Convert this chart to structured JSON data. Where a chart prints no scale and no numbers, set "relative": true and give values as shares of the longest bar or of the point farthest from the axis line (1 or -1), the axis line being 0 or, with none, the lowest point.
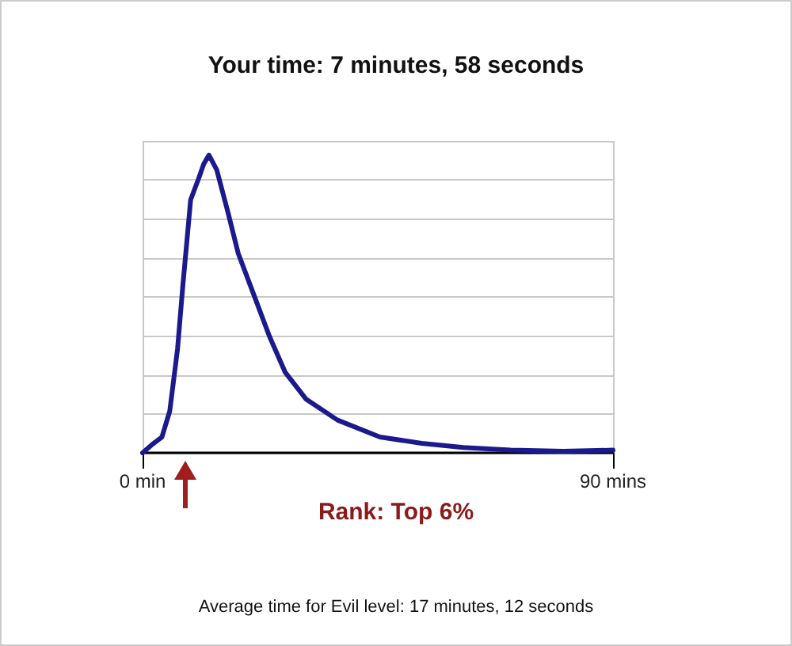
{
  "chart_data": {
    "type": "line",
    "title": "Your time: 7 minutes, 58 seconds",
    "relative": true,
    "x": [
      0,
      1.7,
      3.7,
      5.2,
      6.7,
      7.7,
      9.2,
      10.7,
      11.7,
      12.7,
      14.2,
      16.3,
      18.3,
      21.3,
      24.3,
      27.3,
      31.3,
      37.3,
      45.4,
      53.4,
      61.4,
      70.4,
      80.5,
      90
    ],
    "series": [
      {
        "color": "#1a1a8c",
        "values": [
          0,
          0.026,
          0.053,
          0.14,
          0.35,
          0.56,
          0.85,
          0.92,
          0.97,
          1,
          0.95,
          0.81,
          0.67,
          0.53,
          0.39,
          0.27,
          0.18,
          0.11,
          0.053,
          0.032,
          0.018,
          0.009,
          0.005,
          0.009
        ]
      }
    ],
    "xlim": [
      0,
      90
    ],
    "xticks": [
      {
        "value": 0,
        "label": "0 min"
      },
      {
        "value": 90,
        "label": "90 mins"
      }
    ],
    "annotations": [
      "Rank: Top 6%",
      "Average time for Evil level: 17 minutes, 12 seconds"
    ],
    "grid": true,
    "marker": "none",
    "line_style": "solid"
  }
}
